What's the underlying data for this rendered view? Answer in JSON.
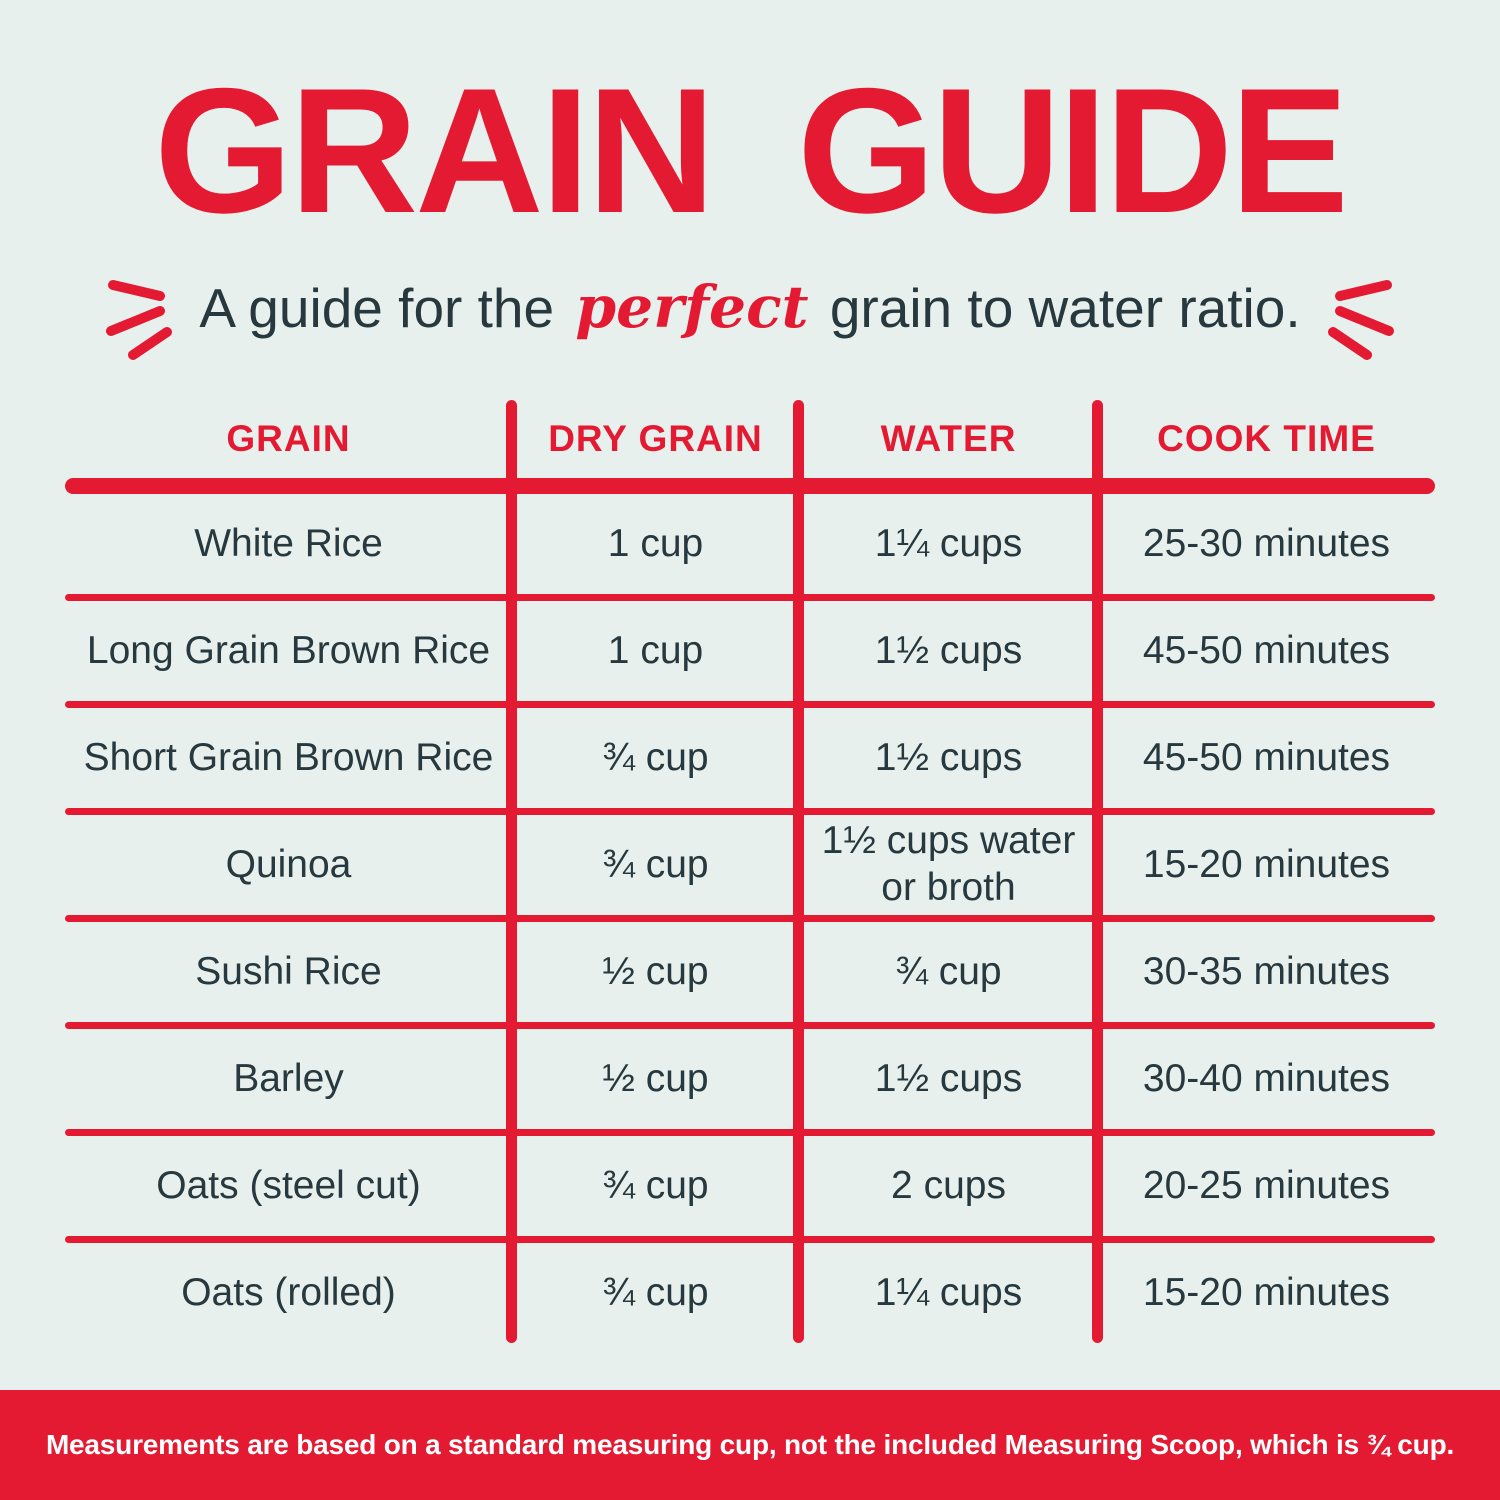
{
  "colors": {
    "accent_red": "#e41a32",
    "background_mint": "#e7f0ec",
    "text_dark": "#27393e",
    "footer_text": "#ffffff"
  },
  "title": "GRAIN GUIDE",
  "subtitle": {
    "before": "A guide for the",
    "highlight": "perfect",
    "after": "grain to water ratio."
  },
  "table": {
    "columns": [
      "GRAIN",
      "DRY GRAIN",
      "WATER",
      "COOK TIME"
    ],
    "rows": [
      [
        "White Rice",
        "1 cup",
        "1¼ cups",
        "25-30 minutes"
      ],
      [
        "Long Grain Brown Rice",
        "1 cup",
        "1½ cups",
        "45-50 minutes"
      ],
      [
        "Short Grain Brown Rice",
        "¾ cup",
        "1½ cups",
        "45-50 minutes"
      ],
      [
        "Quinoa",
        "¾ cup",
        "1½ cups water or broth",
        "15-20 minutes"
      ],
      [
        "Sushi Rice",
        "½ cup",
        "¾ cup",
        "30-35 minutes"
      ],
      [
        "Barley",
        "½ cup",
        "1½ cups",
        "30-40 minutes"
      ],
      [
        "Oats (steel cut)",
        "¾ cup",
        "2 cups",
        "20-25 minutes"
      ],
      [
        "Oats (rolled)",
        "¾ cup",
        "1¼ cups",
        "15-20 minutes"
      ]
    ]
  },
  "footer": {
    "note": "Measurements are based on a standard measuring cup, not the included Measuring Scoop, which is ¾ cup."
  }
}
